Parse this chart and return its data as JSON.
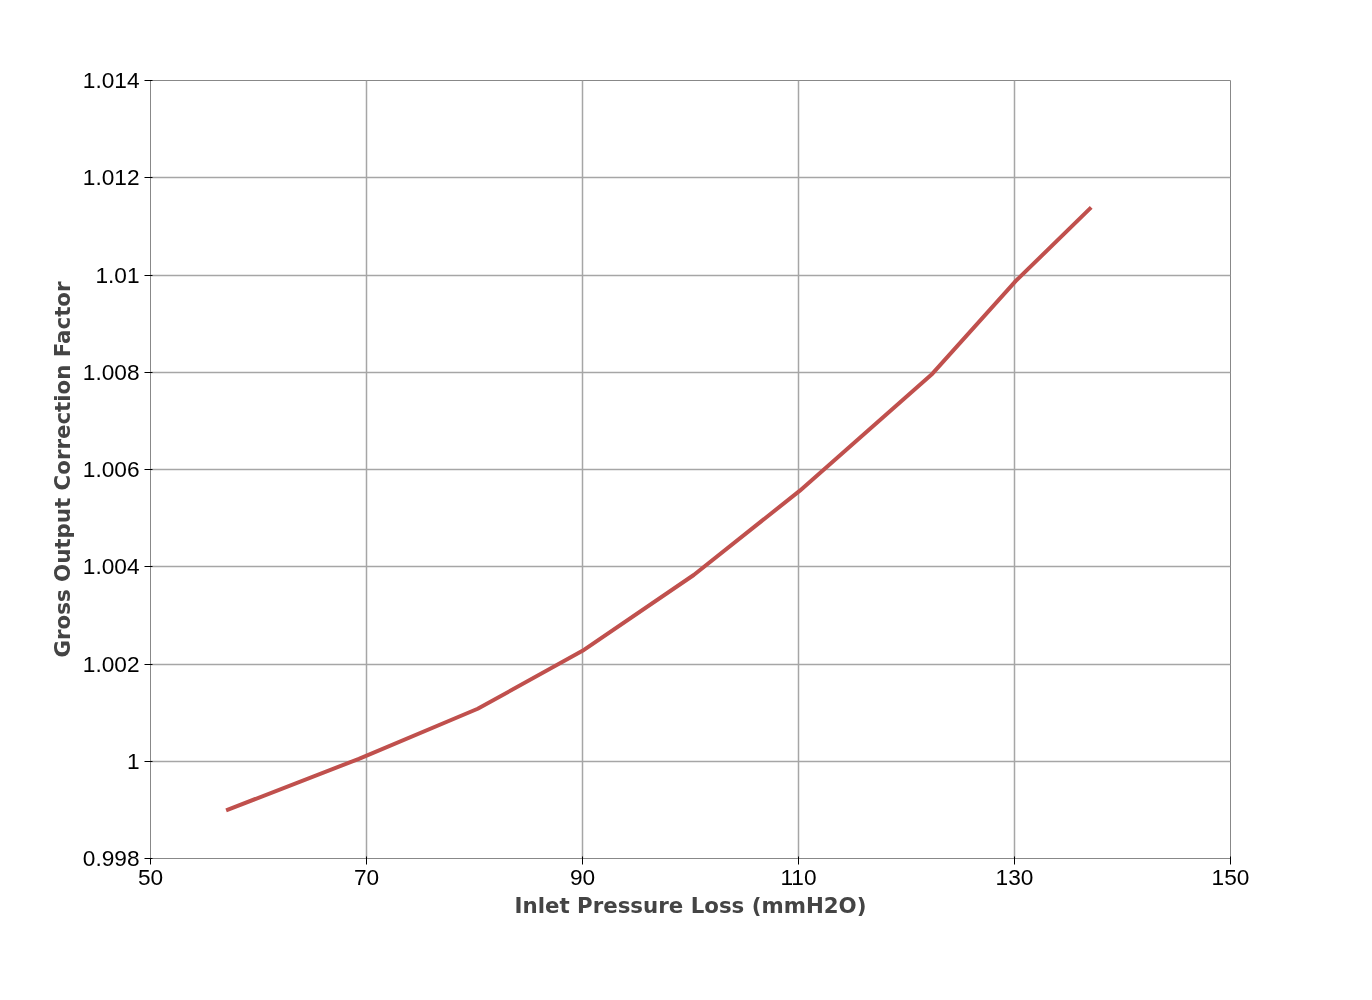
{
  "chart_data": {
    "type": "line",
    "xlabel": "Inlet Pressure Loss (mmH2O)",
    "ylabel": "Gross Output Correction Factor",
    "x": [
      57.0,
      69.3,
      80.3,
      90.0,
      100.3,
      110.1,
      122.4,
      130.0,
      137.1
    ],
    "series": [
      {
        "color": "#c0504d",
        "values": [
          0.99899,
          1.00005,
          1.00108,
          1.00227,
          1.00383,
          1.00556,
          1.00797,
          1.00985,
          1.01139
        ]
      }
    ],
    "xlim": [
      50,
      150
    ],
    "xticks": [
      50,
      70,
      90,
      110,
      130,
      150
    ],
    "ylim": [
      0.998,
      1.014
    ],
    "yticks": [
      {
        "value": 0.998,
        "label": "0.998"
      },
      {
        "value": 1,
        "label": "1"
      },
      {
        "value": 1.002,
        "label": "1.002"
      },
      {
        "value": 1.004,
        "label": "1.004"
      },
      {
        "value": 1.006,
        "label": "1.006"
      },
      {
        "value": 1.008,
        "label": "1.008"
      },
      {
        "value": 1.01,
        "label": "1.01"
      },
      {
        "value": 1.012,
        "label": "1.012"
      },
      {
        "value": 1.014,
        "label": "1.014"
      }
    ],
    "grid": true,
    "marker": "none",
    "line_style": "solid"
  }
}
